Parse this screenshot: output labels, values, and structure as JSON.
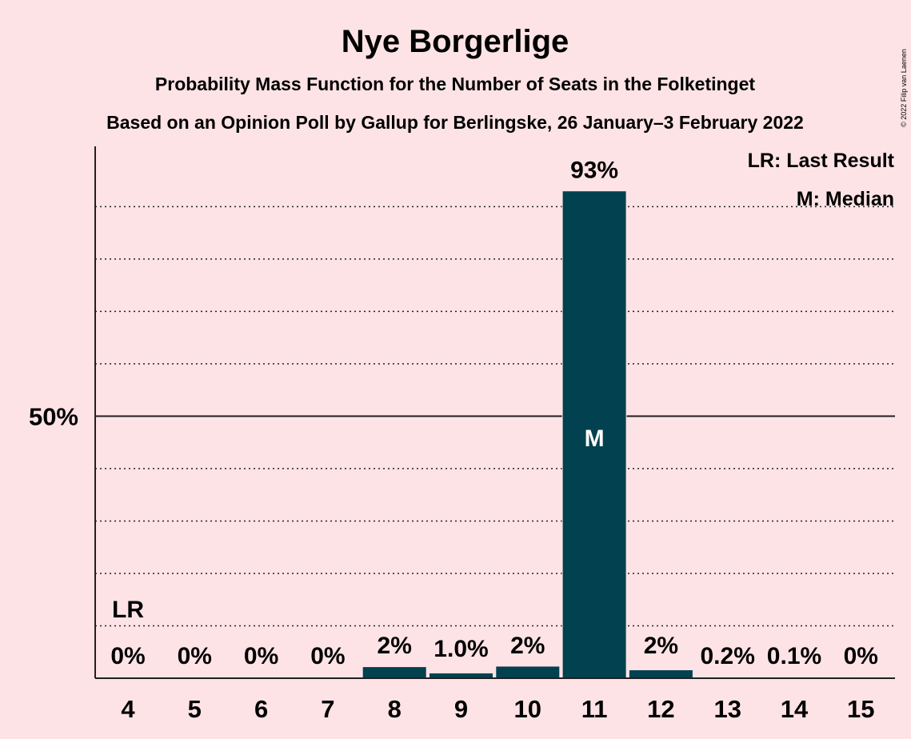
{
  "chart_data": {
    "type": "bar",
    "title": "Nye Borgerlige",
    "subtitle": "Probability Mass Function for the Number of Seats in the Folketinget",
    "subtitle2": "Based on an Opinion Poll by Gallup for Berlingske, 26 January–3 February 2022",
    "categories": [
      "4",
      "5",
      "6",
      "7",
      "8",
      "9",
      "10",
      "11",
      "12",
      "13",
      "14",
      "15"
    ],
    "values": [
      0,
      0,
      0,
      0,
      2.2,
      1.0,
      2.3,
      93,
      1.6,
      0.2,
      0.1,
      0
    ],
    "value_labels": [
      "0%",
      "0%",
      "0%",
      "0%",
      "2%",
      "1.0%",
      "2%",
      "93%",
      "2%",
      "0.2%",
      "0.1%",
      "0%"
    ],
    "ylim": [
      0,
      101.5
    ],
    "y_tick_label": "50%",
    "y_tick_value": 50,
    "gridlines": [
      10,
      20,
      30,
      40,
      50,
      60,
      70,
      80,
      90
    ],
    "last_result_category": "4",
    "last_result_marker": "LR",
    "median_category": "11",
    "median_marker": "M",
    "legend": [
      "LR: Last Result",
      "M: Median"
    ],
    "legend_position": "top-right",
    "bar_color": "#02414f",
    "background_color": "#fde3e6",
    "copyright": "© 2022 Filip van Laenen"
  }
}
